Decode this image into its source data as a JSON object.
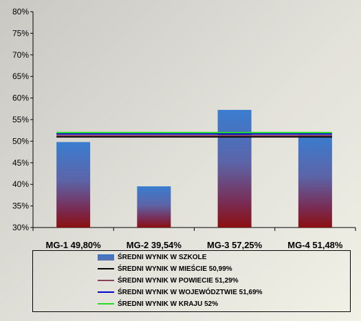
{
  "chart_data": {
    "type": "bar",
    "categories": [
      "MG-1 49,80%",
      "MG-2 39,54%",
      "MG-3 57,25%",
      "MG-4 51,48%"
    ],
    "values": [
      49.8,
      39.54,
      57.25,
      51.48
    ],
    "ylim": [
      30,
      80
    ],
    "yticks": [
      "30%",
      "35%",
      "40%",
      "45%",
      "50%",
      "55%",
      "60%",
      "65%",
      "70%",
      "75%",
      "80%"
    ],
    "ytick_values": [
      30,
      35,
      40,
      45,
      50,
      55,
      60,
      65,
      70,
      75,
      80
    ],
    "grid": false,
    "legend_position": "bottom",
    "series": [
      {
        "name": "ŚREDNI WYNIK W SZKOLE",
        "kind": "bar",
        "values": [
          49.8,
          39.54,
          57.25,
          51.48
        ]
      },
      {
        "name": "ŚREDNI WYNIK W MIEŚCIE 50,99%",
        "kind": "line",
        "value": 50.99,
        "color": "#000000"
      },
      {
        "name": "ŚREDNI WYNIK W POWIECIE 51,29%",
        "kind": "line",
        "value": 51.29,
        "color": "#8a3e5a"
      },
      {
        "name": "ŚREDNI WYNIK W WOJEWÓDZTWIE 51,69%",
        "kind": "line",
        "value": 51.69,
        "color": "#0000cc"
      },
      {
        "name": "ŚREDNI WYNIK W KRAJU 52%",
        "kind": "line",
        "value": 52,
        "color": "#22dd22"
      }
    ],
    "colors": {
      "bar_top": "#3a7dd0",
      "bar_bottom": "#8b1010"
    }
  }
}
